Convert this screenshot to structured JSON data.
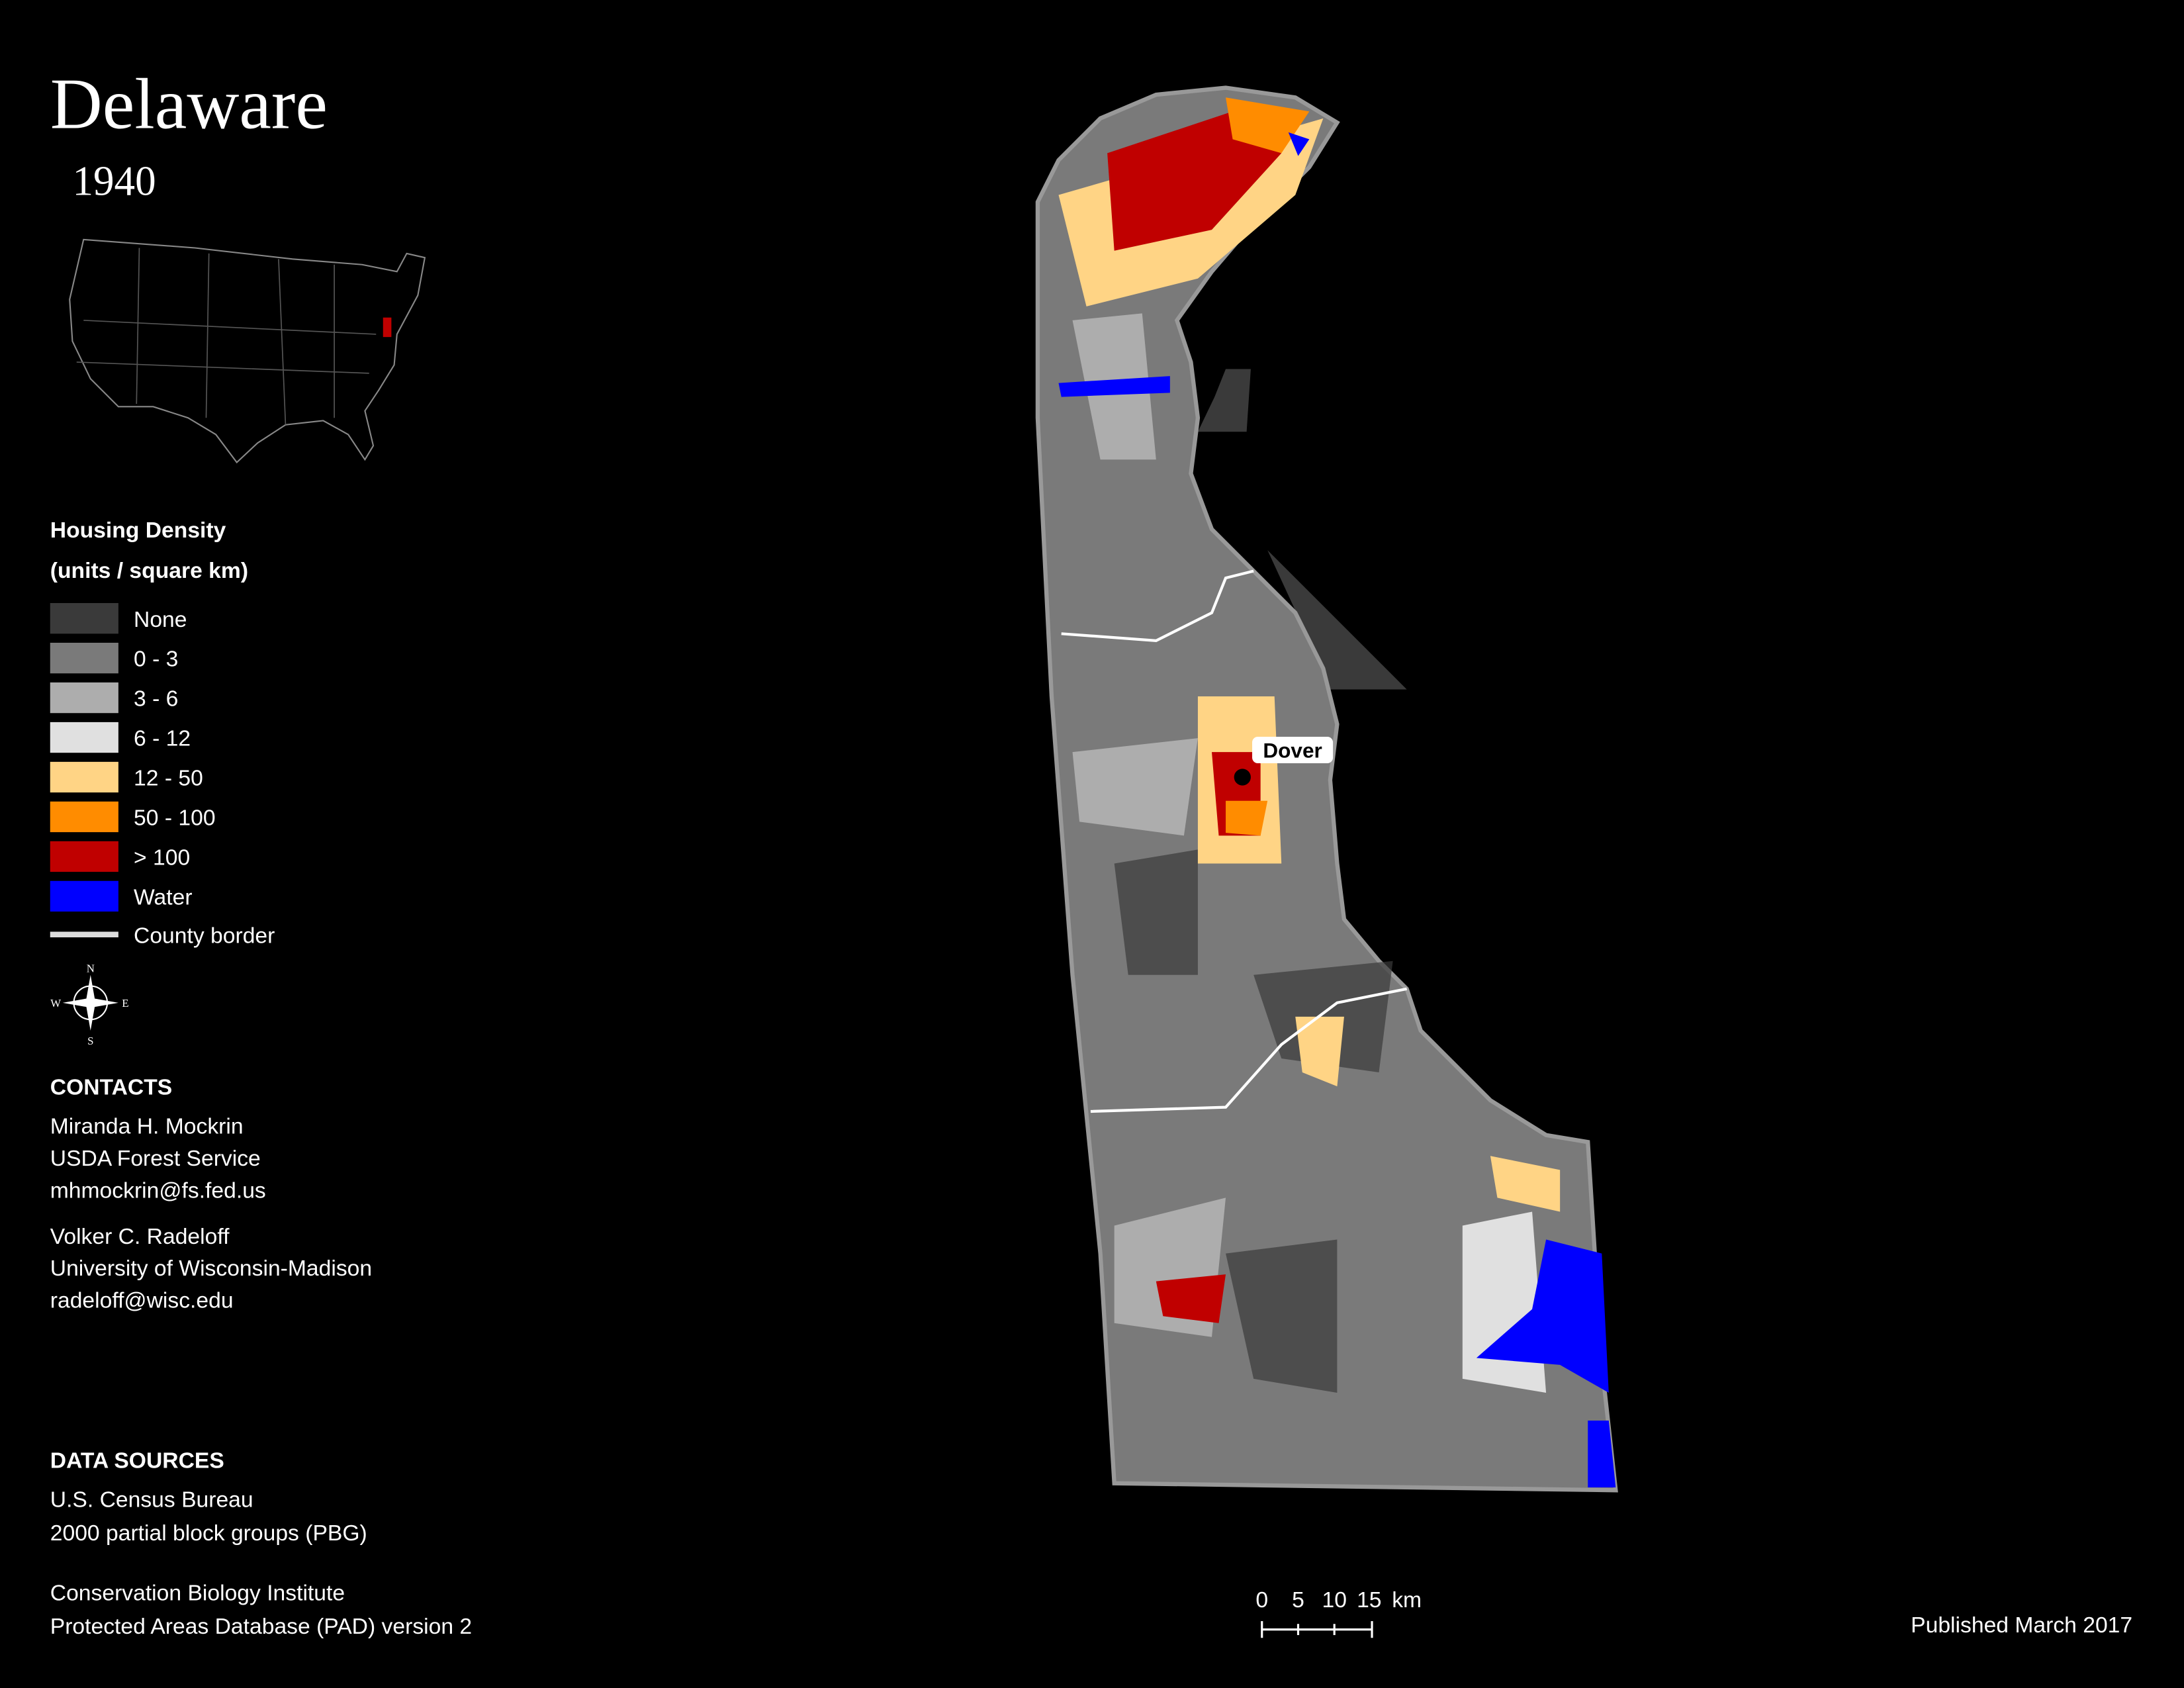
{
  "title": "Delaware",
  "year": "1940",
  "legend": {
    "title": "Housing Density",
    "subtitle": "(units / square km)",
    "items": [
      {
        "label": "None",
        "color": "#3a3a3a"
      },
      {
        "label": "0 - 3",
        "color": "#7a7a7a"
      },
      {
        "label": "3 - 6",
        "color": "#adadad"
      },
      {
        "label": "6 - 12",
        "color": "#e0e0e0"
      },
      {
        "label": "12 - 50",
        "color": "#ffd485"
      },
      {
        "label": "50 - 100",
        "color": "#ff8c00"
      },
      {
        "label": "> 100",
        "color": "#c00000"
      },
      {
        "label": "Water",
        "color": "#0000ff"
      }
    ],
    "county_border": "County border"
  },
  "compass": {
    "n": "N",
    "e": "E",
    "s": "S",
    "w": "W"
  },
  "contacts": {
    "heading": "CONTACTS",
    "people": [
      [
        "Miranda H. Mockrin",
        "USDA Forest Service",
        "mhmockrin@fs.fed.us"
      ],
      [
        "Volker C. Radeloff",
        "University of Wisconsin-Madison",
        "radeloff@wisc.edu"
      ]
    ]
  },
  "data_sources": {
    "heading": "DATA SOURCES",
    "groups": [
      [
        "U.S. Census Bureau",
        "2000 partial block groups (PBG)"
      ],
      [
        "Conservation Biology Institute",
        "Protected Areas Database (PAD) version 2"
      ]
    ]
  },
  "scale_bar": {
    "labels": [
      "0",
      "5",
      "10",
      "15"
    ],
    "unit": "km"
  },
  "city": "Dover",
  "published": "Published March 2017"
}
